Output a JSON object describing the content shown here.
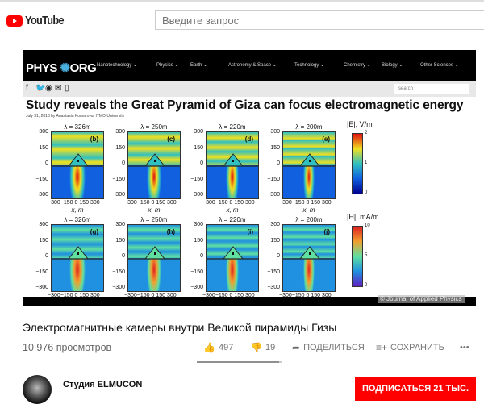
{
  "header": {
    "logo_text": "YouTube",
    "search_placeholder": "Введите запрос"
  },
  "frame": {
    "site_logo_left": "PHYS",
    "site_logo_right": "ORG",
    "nav": [
      "Nanotechnology ⌄",
      "Physics ⌄",
      "Earth ⌄",
      "Astronomy & Space ⌄",
      "Technology ⌄",
      "Chemistry ⌄",
      "Biology ⌄",
      "Other Sciences ⌄"
    ],
    "social_icons": [
      "f",
      "🐦",
      "◉",
      "✉",
      "▯"
    ],
    "search_placeholder": "search",
    "article_title": "Study reveals the Great Pyramid of Giza can focus electromagnetic energy",
    "byline": "July 31, 2018 by Anastasia Komarova, ITMO University",
    "rows": [
      {
        "colorbar_title": "|E|, V/m",
        "colorbar_ticks": [
          "2",
          "1",
          "0"
        ],
        "colors": [
          "#e01010",
          "#f0e020",
          "#30c0c0",
          "#1060e0",
          "#000090"
        ],
        "panels": [
          {
            "title": "λ = 326m",
            "label": "(b)"
          },
          {
            "title": "λ = 250m",
            "label": "(c)"
          },
          {
            "title": "λ = 220m",
            "label": "(d)"
          },
          {
            "title": "λ = 200m",
            "label": "(e)"
          }
        ]
      },
      {
        "colorbar_title": "|H|, mA/m",
        "colorbar_ticks": [
          "10",
          "5",
          "0"
        ],
        "colors": [
          "#e02020",
          "#f0a030",
          "#60e0a0",
          "#2090e0",
          "#6020c0"
        ],
        "panels": [
          {
            "title": "λ = 326m",
            "label": "(g)"
          },
          {
            "title": "λ = 250m",
            "label": "(h)"
          },
          {
            "title": "λ = 220m",
            "label": "(i)"
          },
          {
            "title": "λ = 200m",
            "label": "(j)"
          }
        ]
      }
    ],
    "y_ticks": [
      "300",
      "150",
      "0",
      "−150",
      "−300"
    ],
    "x_ticks": "−300−150  0  150  300",
    "x_label": "x, m",
    "credit": "© Journal of Applied Physics"
  },
  "video": {
    "title": "Электромагнитные камеры внутри Великой пирамиды Гизы",
    "views": "10 976 просмотров",
    "likes": "497",
    "dislikes": "19",
    "like_ratio": 0.963,
    "share": "ПОДЕЛИТЬСЯ",
    "save": "СОХРАНИТЬ",
    "more": "•••",
    "channel": "Студия ELMUCON",
    "subscribe": "ПОДПИСАТЬСЯ 21 ТЫС."
  }
}
